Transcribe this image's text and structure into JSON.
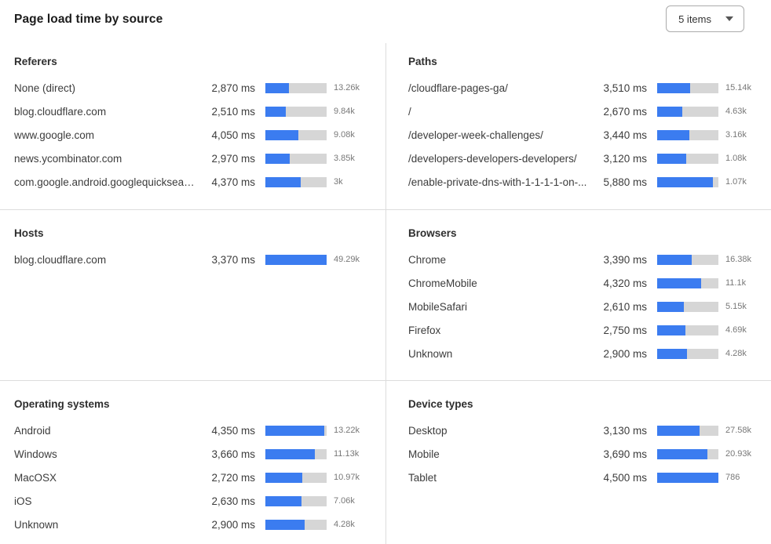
{
  "header": {
    "title": "Page load time by source",
    "items_dropdown": {
      "label": "5 items"
    }
  },
  "colors": {
    "bar_fill": "#3B7CF0",
    "bar_track": "#D6D6D6",
    "divider": "#DCDCDC"
  },
  "chart_data": [
    {
      "type": "bar",
      "orientation": "horizontal",
      "title": "Referers",
      "categories": [
        "None (direct)",
        "blog.cloudflare.com",
        "www.google.com",
        "news.ycombinator.com",
        "com.google.android.googlequicksearc..."
      ],
      "values_ms": [
        2870,
        2510,
        4050,
        2970,
        4370
      ],
      "value_labels": [
        "2,870 ms",
        "2,510 ms",
        "4,050 ms",
        "2,970 ms",
        "4,370 ms"
      ],
      "count_labels": [
        "13.26k",
        "9.84k",
        "9.08k",
        "3.85k",
        "3k"
      ],
      "xlim": [
        0,
        7500
      ]
    },
    {
      "type": "bar",
      "orientation": "horizontal",
      "title": "Paths",
      "categories": [
        "/cloudflare-pages-ga/",
        "/",
        "/developer-week-challenges/",
        "/developers-developers-developers/",
        "/enable-private-dns-with-1-1-1-1-on-..."
      ],
      "values_ms": [
        3510,
        2670,
        3440,
        3120,
        5880
      ],
      "value_labels": [
        "3,510 ms",
        "2,670 ms",
        "3,440 ms",
        "3,120 ms",
        "5,880 ms"
      ],
      "count_labels": [
        "15.14k",
        "4.63k",
        "3.16k",
        "1.08k",
        "1.07k"
      ],
      "xlim": [
        0,
        6500
      ]
    },
    {
      "type": "bar",
      "orientation": "horizontal",
      "title": "Hosts",
      "categories": [
        "blog.cloudflare.com"
      ],
      "values_ms": [
        3370
      ],
      "value_labels": [
        "3,370 ms"
      ],
      "count_labels": [
        "49.29k"
      ],
      "xlim": [
        0,
        3370
      ]
    },
    {
      "type": "bar",
      "orientation": "horizontal",
      "title": "Browsers",
      "categories": [
        "Chrome",
        "ChromeMobile",
        "MobileSafari",
        "Firefox",
        "Unknown"
      ],
      "values_ms": [
        3390,
        4320,
        2610,
        2750,
        2900
      ],
      "value_labels": [
        "3,390 ms",
        "4,320 ms",
        "2,610 ms",
        "2,750 ms",
        "2,900 ms"
      ],
      "count_labels": [
        "16.38k",
        "11.1k",
        "5.15k",
        "4.69k",
        "4.28k"
      ],
      "xlim": [
        0,
        6000
      ]
    },
    {
      "type": "bar",
      "orientation": "horizontal",
      "title": "Operating systems",
      "categories": [
        "Android",
        "Windows",
        "MacOSX",
        "iOS",
        "Unknown"
      ],
      "values_ms": [
        4350,
        3660,
        2720,
        2630,
        2900
      ],
      "value_labels": [
        "4,350 ms",
        "3,660 ms",
        "2,720 ms",
        "2,630 ms",
        "2,900 ms"
      ],
      "count_labels": [
        "13.22k",
        "11.13k",
        "10.97k",
        "7.06k",
        "4.28k"
      ],
      "xlim": [
        0,
        4500
      ]
    },
    {
      "type": "bar",
      "orientation": "horizontal",
      "title": "Device types",
      "categories": [
        "Desktop",
        "Mobile",
        "Tablet"
      ],
      "values_ms": [
        3130,
        3690,
        4500
      ],
      "value_labels": [
        "3,130 ms",
        "3,690 ms",
        "4,500 ms"
      ],
      "count_labels": [
        "27.58k",
        "20.93k",
        "786"
      ],
      "xlim": [
        0,
        4500
      ]
    }
  ]
}
